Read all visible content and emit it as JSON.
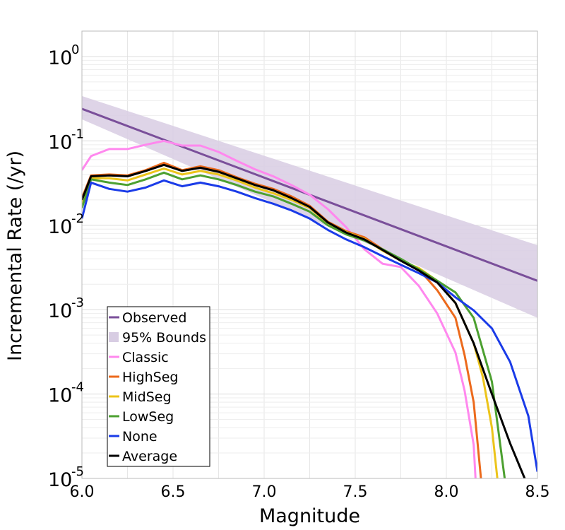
{
  "chart_data": {
    "type": "line",
    "title": "",
    "xlabel": "Magnitude",
    "ylabel": "Incremental Rate (/yr)",
    "xlim": [
      6.0,
      8.5
    ],
    "ylim": [
      1e-05,
      2
    ],
    "yscale": "log",
    "grid": true,
    "legend_position": "bottom-left",
    "x_ticks": [
      {
        "value": 6.0,
        "label": "6.0"
      },
      {
        "value": 6.5,
        "label": "6.5"
      },
      {
        "value": 7.0,
        "label": "7.0"
      },
      {
        "value": 7.5,
        "label": "7.5"
      },
      {
        "value": 8.0,
        "label": "8.0"
      },
      {
        "value": 8.5,
        "label": "8.5"
      }
    ],
    "y_ticks": [
      {
        "value": 1,
        "base": "10",
        "exp": "0"
      },
      {
        "value": 0.1,
        "base": "10",
        "exp": "-1"
      },
      {
        "value": 0.01,
        "base": "10",
        "exp": "-2"
      },
      {
        "value": 0.001,
        "base": "10",
        "exp": "-3"
      },
      {
        "value": 0.0001,
        "base": "10",
        "exp": "-4"
      },
      {
        "value": 1e-05,
        "base": "10",
        "exp": "-5"
      }
    ],
    "bounds": {
      "name": "95% Bounds",
      "color": "#d8cde3",
      "x": [
        6.0,
        8.5
      ],
      "lower": [
        0.18,
        0.0008
      ],
      "upper": [
        0.34,
        0.0058
      ]
    },
    "series": [
      {
        "name": "Observed",
        "color": "#7a4f9a",
        "x": [
          6.0,
          8.5
        ],
        "y": [
          0.24,
          0.0022
        ]
      },
      {
        "name": "Classic",
        "color": "#ff88ee",
        "x": [
          6.0,
          6.05,
          6.15,
          6.25,
          6.35,
          6.45,
          6.55,
          6.65,
          6.75,
          6.85,
          6.95,
          7.05,
          7.15,
          7.25,
          7.35,
          7.45,
          7.55,
          7.65,
          7.75,
          7.85,
          7.95,
          8.05,
          8.1,
          8.15,
          8.16
        ],
        "y": [
          0.045,
          0.066,
          0.08,
          0.08,
          0.09,
          0.1,
          0.088,
          0.088,
          0.074,
          0.058,
          0.046,
          0.038,
          0.03,
          0.023,
          0.0155,
          0.0095,
          0.0052,
          0.0035,
          0.0032,
          0.0019,
          0.0009,
          0.00031,
          0.00011,
          2.5e-05,
          1e-05
        ]
      },
      {
        "name": "HighSeg",
        "color": "#ec6a1c",
        "x": [
          6.0,
          6.05,
          6.15,
          6.25,
          6.35,
          6.45,
          6.55,
          6.65,
          6.75,
          6.85,
          6.95,
          7.05,
          7.15,
          7.25,
          7.35,
          7.45,
          7.55,
          7.65,
          7.75,
          7.85,
          7.95,
          8.05,
          8.1,
          8.15,
          8.19
        ],
        "y": [
          0.021,
          0.039,
          0.04,
          0.039,
          0.045,
          0.055,
          0.045,
          0.05,
          0.045,
          0.037,
          0.031,
          0.027,
          0.022,
          0.017,
          0.011,
          0.0085,
          0.0072,
          0.0052,
          0.0039,
          0.003,
          0.0017,
          0.0008,
          0.00029,
          8e-05,
          1e-05
        ]
      },
      {
        "name": "MidSeg",
        "color": "#ecc41a",
        "x": [
          6.0,
          6.05,
          6.15,
          6.25,
          6.35,
          6.45,
          6.55,
          6.65,
          6.75,
          6.85,
          6.95,
          7.05,
          7.15,
          7.25,
          7.35,
          7.45,
          7.55,
          7.65,
          7.75,
          7.85,
          7.95,
          8.05,
          8.15,
          8.2,
          8.25,
          8.28
        ],
        "y": [
          0.018,
          0.036,
          0.036,
          0.034,
          0.04,
          0.047,
          0.04,
          0.044,
          0.04,
          0.034,
          0.028,
          0.024,
          0.02,
          0.016,
          0.0105,
          0.0083,
          0.0069,
          0.005,
          0.0038,
          0.0031,
          0.0022,
          0.0012,
          0.0004,
          0.00016,
          4e-05,
          1e-05
        ]
      },
      {
        "name": "LowSeg",
        "color": "#4ca030",
        "x": [
          6.0,
          6.05,
          6.15,
          6.25,
          6.35,
          6.45,
          6.55,
          6.65,
          6.75,
          6.85,
          6.95,
          7.05,
          7.15,
          7.25,
          7.35,
          7.45,
          7.55,
          7.65,
          7.75,
          7.85,
          7.95,
          8.05,
          8.15,
          8.25,
          8.32
        ],
        "y": [
          0.016,
          0.035,
          0.032,
          0.03,
          0.035,
          0.042,
          0.035,
          0.039,
          0.035,
          0.03,
          0.025,
          0.022,
          0.018,
          0.0145,
          0.01,
          0.0078,
          0.0066,
          0.0052,
          0.004,
          0.003,
          0.0022,
          0.0016,
          0.0008,
          0.00014,
          1e-05
        ]
      },
      {
        "name": "None",
        "color": "#1a3be8",
        "x": [
          6.0,
          6.05,
          6.15,
          6.25,
          6.35,
          6.45,
          6.55,
          6.65,
          6.75,
          6.85,
          6.95,
          7.05,
          7.15,
          7.25,
          7.35,
          7.45,
          7.55,
          7.65,
          7.75,
          7.85,
          7.95,
          8.05,
          8.15,
          8.25,
          8.35,
          8.45,
          8.5
        ],
        "y": [
          0.012,
          0.032,
          0.027,
          0.025,
          0.028,
          0.034,
          0.029,
          0.032,
          0.029,
          0.025,
          0.021,
          0.018,
          0.015,
          0.012,
          0.0088,
          0.0068,
          0.0055,
          0.0043,
          0.0034,
          0.0027,
          0.0021,
          0.0014,
          0.00098,
          0.0006,
          0.00024,
          5.5e-05,
          1.2e-05
        ]
      },
      {
        "name": "Average",
        "color": "#000000",
        "x": [
          6.0,
          6.05,
          6.15,
          6.25,
          6.35,
          6.45,
          6.55,
          6.65,
          6.75,
          6.85,
          6.95,
          7.05,
          7.15,
          7.25,
          7.35,
          7.45,
          7.55,
          7.65,
          7.75,
          7.85,
          7.95,
          8.05,
          8.15,
          8.25,
          8.35,
          8.43
        ],
        "y": [
          0.02,
          0.038,
          0.039,
          0.038,
          0.044,
          0.052,
          0.044,
          0.048,
          0.043,
          0.036,
          0.03,
          0.026,
          0.021,
          0.0165,
          0.0108,
          0.0082,
          0.0068,
          0.0051,
          0.0038,
          0.0029,
          0.0021,
          0.0012,
          0.0004,
          0.0001,
          2.6e-05,
          1e-05
        ]
      }
    ],
    "legend": [
      {
        "label": "Observed",
        "color": "#7a4f9a",
        "kind": "line"
      },
      {
        "label": "95% Bounds",
        "color": "#d8cde3",
        "kind": "patch"
      },
      {
        "label": "Classic",
        "color": "#ff88ee",
        "kind": "line"
      },
      {
        "label": "HighSeg",
        "color": "#ec6a1c",
        "kind": "line"
      },
      {
        "label": "MidSeg",
        "color": "#ecc41a",
        "kind": "line"
      },
      {
        "label": "LowSeg",
        "color": "#4ca030",
        "kind": "line"
      },
      {
        "label": "None",
        "color": "#1a3be8",
        "kind": "line"
      },
      {
        "label": "Average",
        "color": "#000000",
        "kind": "line"
      }
    ]
  }
}
